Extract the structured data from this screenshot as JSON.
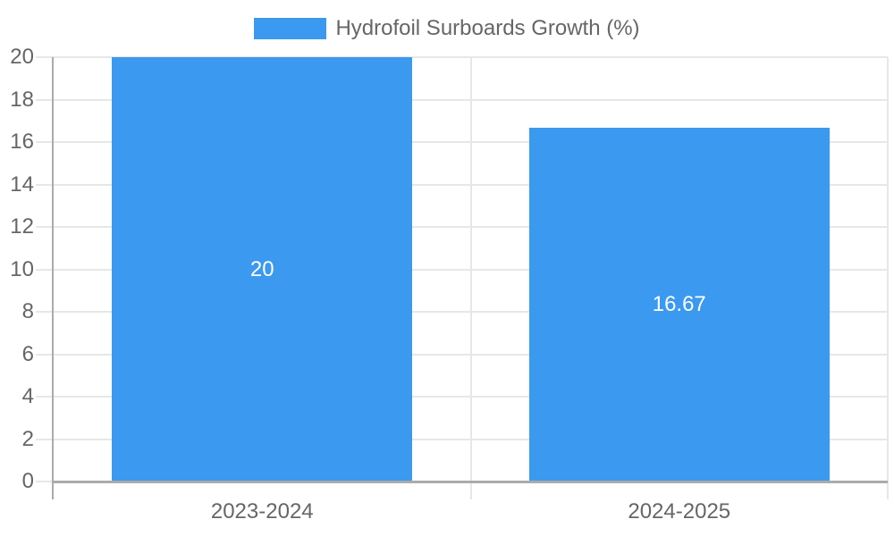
{
  "legend": {
    "label": "Hydrofoil Surboards Growth (%)"
  },
  "chart_data": {
    "type": "bar",
    "title": "",
    "categories": [
      "2023-2024",
      "2024-2025"
    ],
    "values": [
      20,
      16.67
    ],
    "data_labels": [
      "20",
      "16.67"
    ],
    "series": [
      {
        "name": "Hydrofoil Surboards Growth (%)",
        "values": [
          20,
          16.67
        ]
      }
    ],
    "xlabel": "",
    "ylabel": "",
    "ylim": [
      0,
      20
    ],
    "yticks": [
      0,
      2,
      4,
      6,
      8,
      10,
      12,
      14,
      16,
      18,
      20
    ],
    "grid": true,
    "legend_position": "top",
    "bar_width_fraction": 0.72
  },
  "colors": {
    "bar": "#3B99F0",
    "gridline": "#E7E7E7",
    "axis_border": "#ABABAB",
    "tick_text": "#666666",
    "data_label_text": "#FFFFFF",
    "background": "#FFFFFF"
  }
}
